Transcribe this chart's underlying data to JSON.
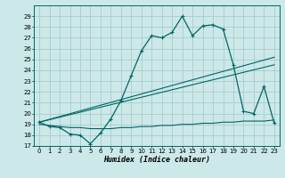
{
  "xlabel": "Humidex (Indice chaleur)",
  "bg_color": "#cce8e8",
  "grid_color": "#aacccc",
  "line_color": "#006666",
  "xlim": [
    -0.5,
    23.5
  ],
  "ylim": [
    17,
    30
  ],
  "yticks": [
    17,
    18,
    19,
    20,
    21,
    22,
    23,
    24,
    25,
    26,
    27,
    28,
    29
  ],
  "xticks": [
    0,
    1,
    2,
    3,
    4,
    5,
    6,
    7,
    8,
    9,
    10,
    11,
    12,
    13,
    14,
    15,
    16,
    17,
    18,
    19,
    20,
    21,
    22,
    23
  ],
  "xtick_labels": [
    "0",
    "1",
    "2",
    "3",
    "4",
    "5",
    "6",
    "7",
    "8",
    "9",
    "10",
    "11",
    "12",
    "13",
    "14",
    "15",
    "16",
    "17",
    "18",
    "19",
    "20",
    "21",
    "22",
    "23"
  ],
  "curve1_x": [
    0,
    1,
    2,
    3,
    4,
    5,
    6,
    7,
    8,
    9,
    10,
    11,
    12,
    13,
    14,
    15,
    16,
    17,
    18,
    19,
    20,
    21,
    22,
    23
  ],
  "curve1_y": [
    19.2,
    18.8,
    18.7,
    18.1,
    18.0,
    17.2,
    18.2,
    19.5,
    21.2,
    23.5,
    25.8,
    27.2,
    27.0,
    27.5,
    29.0,
    27.2,
    28.1,
    28.2,
    27.8,
    24.5,
    20.2,
    20.0,
    22.5,
    19.1
  ],
  "curve2_x": [
    0,
    23
  ],
  "curve2_y": [
    19.2,
    25.2
  ],
  "curve3_x": [
    0,
    23
  ],
  "curve3_y": [
    19.2,
    24.5
  ],
  "curve4_x": [
    0,
    1,
    2,
    3,
    4,
    5,
    6,
    7,
    8,
    9,
    10,
    11,
    12,
    13,
    14,
    15,
    16,
    17,
    18,
    19,
    20,
    21,
    22,
    23
  ],
  "curve4_y": [
    19.0,
    18.9,
    18.8,
    18.7,
    18.7,
    18.6,
    18.6,
    18.6,
    18.7,
    18.7,
    18.8,
    18.8,
    18.9,
    18.9,
    19.0,
    19.0,
    19.1,
    19.1,
    19.2,
    19.2,
    19.3,
    19.3,
    19.3,
    19.4
  ]
}
